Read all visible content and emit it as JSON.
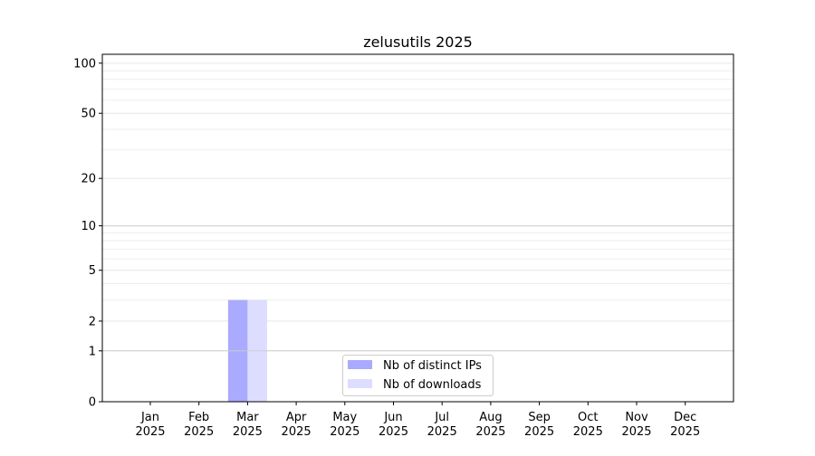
{
  "chart_data": {
    "type": "bar",
    "title": "zelusutils 2025",
    "xlabel": "",
    "ylabel": "",
    "y_scale": "log1p",
    "ylim": [
      0,
      113
    ],
    "yticks": [
      0,
      1,
      2,
      5,
      10,
      20,
      50,
      100
    ],
    "y_minor_ticks": [
      3,
      4,
      6,
      7,
      8,
      9,
      30,
      40,
      60,
      70,
      80,
      90
    ],
    "grid": true,
    "legend_position": "lower-center",
    "categories": [
      "Jan\n2025",
      "Feb\n2025",
      "Mar\n2025",
      "Apr\n2025",
      "May\n2025",
      "Jun\n2025",
      "Jul\n2025",
      "Aug\n2025",
      "Sep\n2025",
      "Oct\n2025",
      "Nov\n2025",
      "Dec\n2025"
    ],
    "series": [
      {
        "name": "Nb of distinct IPs",
        "color": "#aaaaff",
        "values": [
          0,
          0,
          3,
          0,
          0,
          0,
          0,
          0,
          0,
          0,
          0,
          0
        ]
      },
      {
        "name": "Nb of downloads",
        "color": "#ddddff",
        "values": [
          0,
          0,
          3,
          0,
          0,
          0,
          0,
          0,
          0,
          0,
          0,
          0
        ]
      }
    ]
  }
}
